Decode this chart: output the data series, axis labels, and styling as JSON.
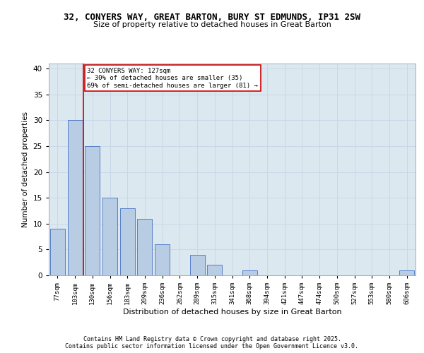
{
  "title_line1": "32, CONYERS WAY, GREAT BARTON, BURY ST EDMUNDS, IP31 2SW",
  "title_line2": "Size of property relative to detached houses in Great Barton",
  "xlabel": "Distribution of detached houses by size in Great Barton",
  "ylabel": "Number of detached properties",
  "bar_labels": [
    "77sqm",
    "103sqm",
    "130sqm",
    "156sqm",
    "183sqm",
    "209sqm",
    "236sqm",
    "262sqm",
    "289sqm",
    "315sqm",
    "341sqm",
    "368sqm",
    "394sqm",
    "421sqm",
    "447sqm",
    "474sqm",
    "500sqm",
    "527sqm",
    "553sqm",
    "580sqm",
    "606sqm"
  ],
  "bar_values": [
    9,
    30,
    25,
    15,
    13,
    11,
    6,
    0,
    4,
    2,
    0,
    1,
    0,
    0,
    0,
    0,
    0,
    0,
    0,
    0,
    1
  ],
  "bar_color": "#b8cce4",
  "bar_edgecolor": "#4472c4",
  "annotation_text": "32 CONYERS WAY: 127sqm\n← 30% of detached houses are smaller (35)\n69% of semi-detached houses are larger (81) →",
  "annotation_box_color": "#ffffff",
  "annotation_box_edgecolor": "#cc0000",
  "redline_color": "#cc0000",
  "ylim": [
    0,
    41
  ],
  "yticks": [
    0,
    5,
    10,
    15,
    20,
    25,
    30,
    35,
    40
  ],
  "grid_color": "#c8d8e8",
  "bg_color": "#dce8f0",
  "footer_line1": "Contains HM Land Registry data © Crown copyright and database right 2025.",
  "footer_line2": "Contains public sector information licensed under the Open Government Licence v3.0."
}
